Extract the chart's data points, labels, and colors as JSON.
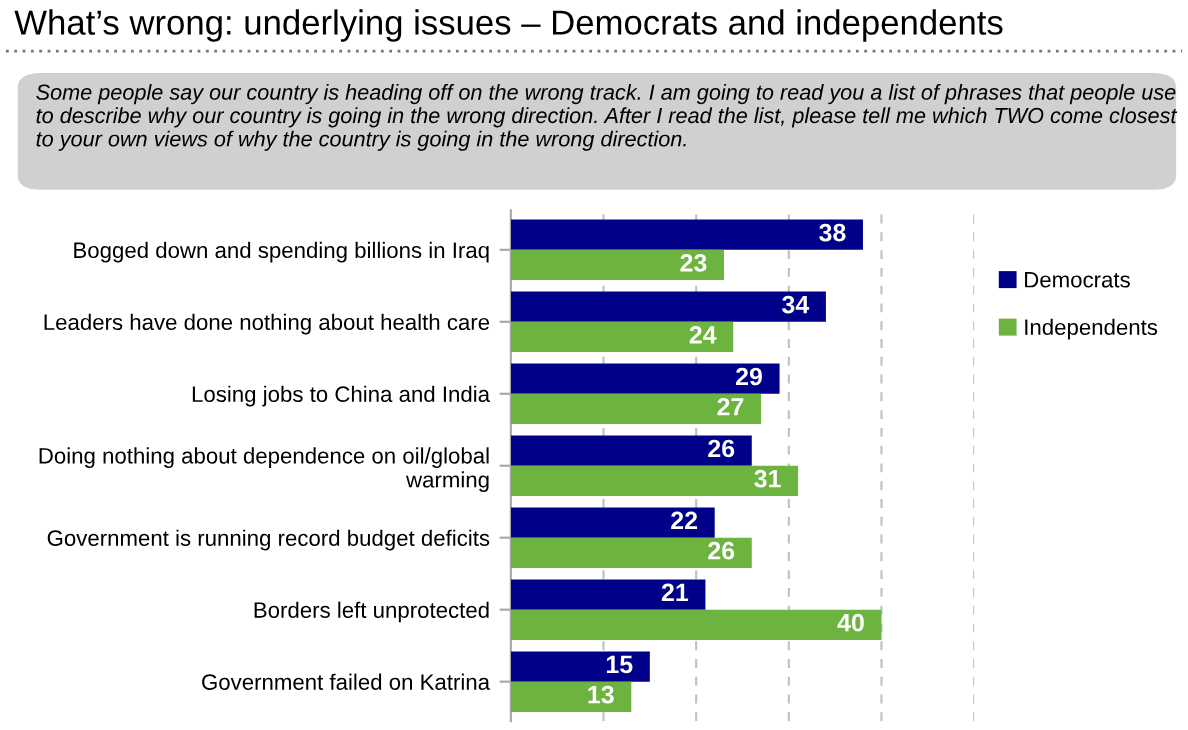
{
  "chart_data": {
    "type": "bar",
    "orientation": "horizontal",
    "title": "What’s wrong: underlying issues – Democrats and independents",
    "annotations": [
      "Some people say our country is heading off on the wrong track. I am going to read you a list of phrases that people use to describe why our country is going in the wrong direction. After I read the list, please tell me which TWO come closest to your own views of why the country is going in the wrong direction."
    ],
    "categories": [
      "Bogged down and spending billions in Iraq",
      "Leaders have done nothing about health care",
      "Losing jobs to China and India",
      "Doing nothing about dependence on oil/global\nwarming",
      "Government is running record budget deficits",
      "Borders left unprotected",
      "Government failed on Katrina"
    ],
    "series": [
      {
        "name": "Democrats",
        "color": "#000088",
        "values": [
          38,
          34,
          29,
          26,
          22,
          21,
          15
        ]
      },
      {
        "name": "Independents",
        "color": "#6db33f",
        "values": [
          23,
          24,
          27,
          31,
          26,
          40,
          13
        ]
      }
    ],
    "xlim": [
      0,
      50
    ],
    "xticks": [
      {
        "value": 10,
        "label": null
      },
      {
        "value": 20,
        "label": null
      },
      {
        "value": 30,
        "label": null
      },
      {
        "value": 40,
        "label": null
      },
      {
        "value": 50,
        "label": null
      }
    ],
    "tick_labels": "y",
    "grid": "x",
    "legend": "right",
    "data_labels": true
  }
}
